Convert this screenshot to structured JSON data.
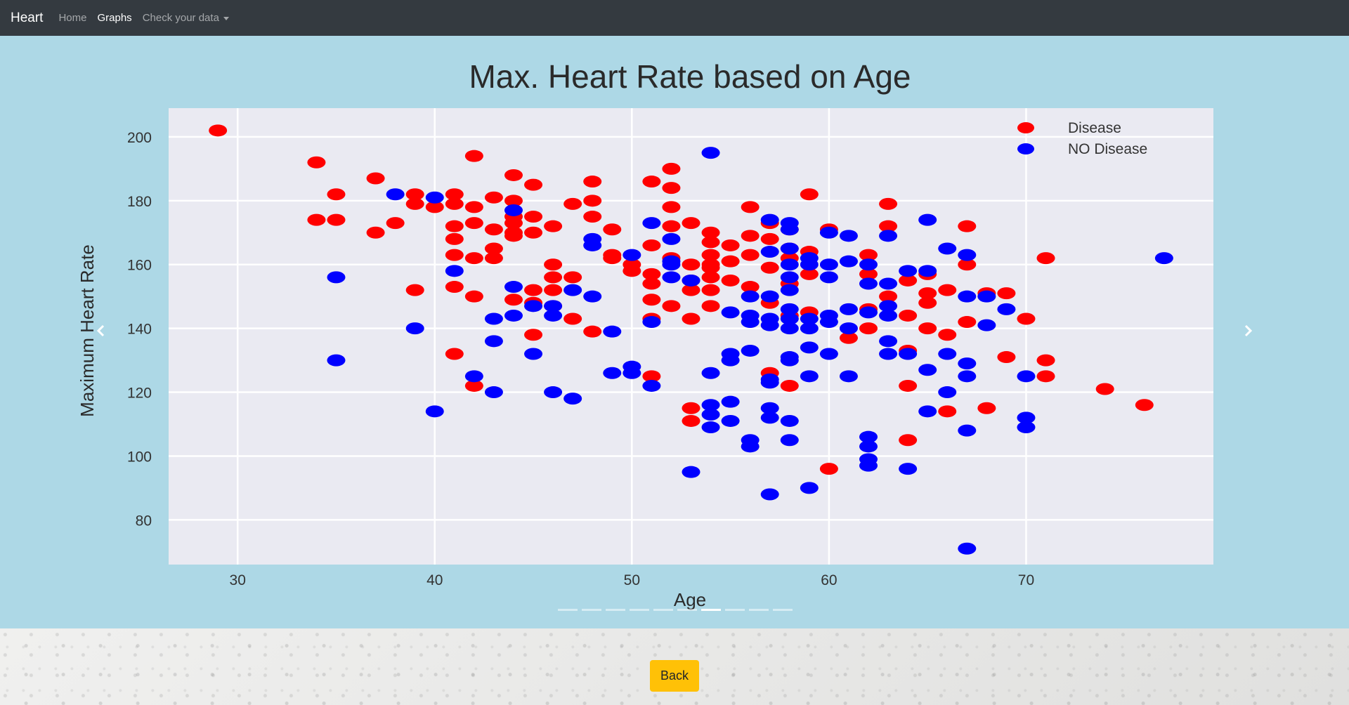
{
  "navbar": {
    "brand": "Heart",
    "links": [
      {
        "label": "Home"
      },
      {
        "label": "Graphs"
      },
      {
        "label": "Check your data"
      }
    ]
  },
  "carousel": {
    "slide_count": 10,
    "active_index": 6
  },
  "back_button": {
    "label": "Back"
  },
  "colors": {
    "navbar_bg": "#343a40",
    "carousel_bg": "#add8e6",
    "plot_bg": "#eaeaf2",
    "disease": "#ff0000",
    "no_disease": "#0000ff",
    "back_button": "#ffc107"
  },
  "chart_data": {
    "type": "scatter",
    "title": "Max. Heart Rate based on Age",
    "xlabel": "Age",
    "ylabel": "Maximum Heart Rate",
    "xlim": [
      26.5,
      79.5
    ],
    "ylim": [
      66,
      209
    ],
    "xticks": [
      30,
      40,
      50,
      60,
      70
    ],
    "yticks": [
      80,
      100,
      120,
      140,
      160,
      180,
      200
    ],
    "grid": true,
    "legend_position": "top-right",
    "series": [
      {
        "name": "Disease",
        "color": "#ff0000",
        "points": [
          [
            29,
            202
          ],
          [
            34,
            192
          ],
          [
            34,
            174
          ],
          [
            35,
            182
          ],
          [
            35,
            174
          ],
          [
            37,
            187
          ],
          [
            37,
            170
          ],
          [
            38,
            173
          ],
          [
            39,
            182
          ],
          [
            39,
            179
          ],
          [
            39,
            152
          ],
          [
            40,
            178
          ],
          [
            41,
            182
          ],
          [
            41,
            179
          ],
          [
            41,
            172
          ],
          [
            41,
            168
          ],
          [
            41,
            163
          ],
          [
            41,
            153
          ],
          [
            41,
            132
          ],
          [
            42,
            194
          ],
          [
            42,
            178
          ],
          [
            42,
            173
          ],
          [
            42,
            162
          ],
          [
            42,
            150
          ],
          [
            42,
            122
          ],
          [
            43,
            181
          ],
          [
            43,
            171
          ],
          [
            43,
            165
          ],
          [
            43,
            162
          ],
          [
            44,
            188
          ],
          [
            44,
            180
          ],
          [
            44,
            175
          ],
          [
            44,
            173
          ],
          [
            44,
            170
          ],
          [
            44,
            169
          ],
          [
            44,
            149
          ],
          [
            45,
            185
          ],
          [
            45,
            175
          ],
          [
            45,
            170
          ],
          [
            45,
            152
          ],
          [
            45,
            148
          ],
          [
            45,
            138
          ],
          [
            46,
            172
          ],
          [
            46,
            160
          ],
          [
            46,
            156
          ],
          [
            46,
            152
          ],
          [
            46,
            147
          ],
          [
            47,
            179
          ],
          [
            47,
            156
          ],
          [
            47,
            143
          ],
          [
            48,
            186
          ],
          [
            48,
            180
          ],
          [
            48,
            175
          ],
          [
            48,
            139
          ],
          [
            49,
            171
          ],
          [
            49,
            163
          ],
          [
            49,
            162
          ],
          [
            50,
            158
          ],
          [
            50,
            160
          ],
          [
            51,
            186
          ],
          [
            51,
            166
          ],
          [
            51,
            157
          ],
          [
            51,
            154
          ],
          [
            51,
            149
          ],
          [
            51,
            143
          ],
          [
            51,
            125
          ],
          [
            52,
            190
          ],
          [
            52,
            184
          ],
          [
            52,
            178
          ],
          [
            52,
            172
          ],
          [
            52,
            162
          ],
          [
            52,
            147
          ],
          [
            53,
            173
          ],
          [
            53,
            160
          ],
          [
            53,
            155
          ],
          [
            53,
            152
          ],
          [
            53,
            143
          ],
          [
            53,
            115
          ],
          [
            53,
            111
          ],
          [
            54,
            170
          ],
          [
            54,
            167
          ],
          [
            54,
            163
          ],
          [
            54,
            160
          ],
          [
            54,
            159
          ],
          [
            54,
            156
          ],
          [
            54,
            152
          ],
          [
            54,
            147
          ],
          [
            55,
            166
          ],
          [
            55,
            161
          ],
          [
            55,
            155
          ],
          [
            56,
            178
          ],
          [
            56,
            169
          ],
          [
            56,
            163
          ],
          [
            56,
            153
          ],
          [
            57,
            173
          ],
          [
            57,
            168
          ],
          [
            57,
            159
          ],
          [
            57,
            148
          ],
          [
            57,
            126
          ],
          [
            58,
            171
          ],
          [
            58,
            165
          ],
          [
            58,
            162
          ],
          [
            58,
            154
          ],
          [
            58,
            144
          ],
          [
            58,
            122
          ],
          [
            59,
            182
          ],
          [
            59,
            164
          ],
          [
            59,
            157
          ],
          [
            59,
            145
          ],
          [
            60,
            171
          ],
          [
            60,
            96
          ],
          [
            61,
            137
          ],
          [
            62,
            163
          ],
          [
            62,
            157
          ],
          [
            62,
            146
          ],
          [
            62,
            140
          ],
          [
            63,
            179
          ],
          [
            63,
            172
          ],
          [
            63,
            150
          ],
          [
            64,
            155
          ],
          [
            64,
            144
          ],
          [
            64,
            133
          ],
          [
            64,
            122
          ],
          [
            64,
            105
          ],
          [
            65,
            157
          ],
          [
            65,
            151
          ],
          [
            65,
            148
          ],
          [
            65,
            140
          ],
          [
            66,
            152
          ],
          [
            66,
            138
          ],
          [
            66,
            114
          ],
          [
            67,
            172
          ],
          [
            67,
            160
          ],
          [
            67,
            142
          ],
          [
            68,
            151
          ],
          [
            68,
            115
          ],
          [
            69,
            151
          ],
          [
            69,
            131
          ],
          [
            70,
            143
          ],
          [
            71,
            162
          ],
          [
            71,
            130
          ],
          [
            71,
            125
          ],
          [
            74,
            121
          ],
          [
            76,
            116
          ]
        ]
      },
      {
        "name": "NO Disease",
        "color": "#0000ff",
        "points": [
          [
            35,
            156
          ],
          [
            35,
            130
          ],
          [
            38,
            182
          ],
          [
            39,
            140
          ],
          [
            40,
            181
          ],
          [
            40,
            114
          ],
          [
            41,
            158
          ],
          [
            42,
            125
          ],
          [
            43,
            143
          ],
          [
            43,
            136
          ],
          [
            43,
            120
          ],
          [
            44,
            177
          ],
          [
            44,
            153
          ],
          [
            44,
            144
          ],
          [
            45,
            147
          ],
          [
            45,
            132
          ],
          [
            46,
            147
          ],
          [
            46,
            144
          ],
          [
            46,
            120
          ],
          [
            47,
            152
          ],
          [
            47,
            118
          ],
          [
            48,
            168
          ],
          [
            48,
            166
          ],
          [
            48,
            150
          ],
          [
            49,
            139
          ],
          [
            49,
            126
          ],
          [
            50,
            163
          ],
          [
            50,
            128
          ],
          [
            50,
            126
          ],
          [
            51,
            173
          ],
          [
            51,
            142
          ],
          [
            51,
            122
          ],
          [
            52,
            168
          ],
          [
            52,
            161
          ],
          [
            52,
            160
          ],
          [
            52,
            156
          ],
          [
            53,
            155
          ],
          [
            53,
            95
          ],
          [
            54,
            195
          ],
          [
            54,
            126
          ],
          [
            54,
            116
          ],
          [
            54,
            113
          ],
          [
            54,
            109
          ],
          [
            55,
            145
          ],
          [
            55,
            132
          ],
          [
            55,
            130
          ],
          [
            55,
            117
          ],
          [
            55,
            111
          ],
          [
            56,
            150
          ],
          [
            56,
            144
          ],
          [
            56,
            142
          ],
          [
            56,
            133
          ],
          [
            56,
            105
          ],
          [
            56,
            103
          ],
          [
            57,
            174
          ],
          [
            57,
            164
          ],
          [
            57,
            150
          ],
          [
            57,
            143
          ],
          [
            57,
            141
          ],
          [
            57,
            124
          ],
          [
            57,
            123
          ],
          [
            57,
            115
          ],
          [
            57,
            112
          ],
          [
            57,
            88
          ],
          [
            58,
            173
          ],
          [
            58,
            171
          ],
          [
            58,
            165
          ],
          [
            58,
            160
          ],
          [
            58,
            156
          ],
          [
            58,
            152
          ],
          [
            58,
            146
          ],
          [
            58,
            143
          ],
          [
            58,
            140
          ],
          [
            58,
            131
          ],
          [
            58,
            130
          ],
          [
            58,
            111
          ],
          [
            58,
            105
          ],
          [
            59,
            162
          ],
          [
            59,
            160
          ],
          [
            59,
            143
          ],
          [
            59,
            140
          ],
          [
            59,
            134
          ],
          [
            59,
            125
          ],
          [
            59,
            90
          ],
          [
            60,
            170
          ],
          [
            60,
            160
          ],
          [
            60,
            156
          ],
          [
            60,
            144
          ],
          [
            60,
            142
          ],
          [
            60,
            132
          ],
          [
            61,
            169
          ],
          [
            61,
            161
          ],
          [
            61,
            146
          ],
          [
            61,
            140
          ],
          [
            61,
            125
          ],
          [
            62,
            160
          ],
          [
            62,
            154
          ],
          [
            62,
            145
          ],
          [
            62,
            106
          ],
          [
            62,
            103
          ],
          [
            62,
            99
          ],
          [
            62,
            97
          ],
          [
            63,
            169
          ],
          [
            63,
            154
          ],
          [
            63,
            147
          ],
          [
            63,
            144
          ],
          [
            63,
            136
          ],
          [
            63,
            132
          ],
          [
            64,
            158
          ],
          [
            64,
            132
          ],
          [
            64,
            96
          ],
          [
            65,
            174
          ],
          [
            65,
            158
          ],
          [
            65,
            127
          ],
          [
            65,
            114
          ],
          [
            66,
            165
          ],
          [
            66,
            132
          ],
          [
            66,
            120
          ],
          [
            67,
            163
          ],
          [
            67,
            150
          ],
          [
            67,
            129
          ],
          [
            67,
            125
          ],
          [
            67,
            108
          ],
          [
            67,
            71
          ],
          [
            68,
            150
          ],
          [
            68,
            141
          ],
          [
            69,
            146
          ],
          [
            70,
            125
          ],
          [
            70,
            112
          ],
          [
            70,
            109
          ],
          [
            77,
            162
          ]
        ]
      }
    ]
  }
}
